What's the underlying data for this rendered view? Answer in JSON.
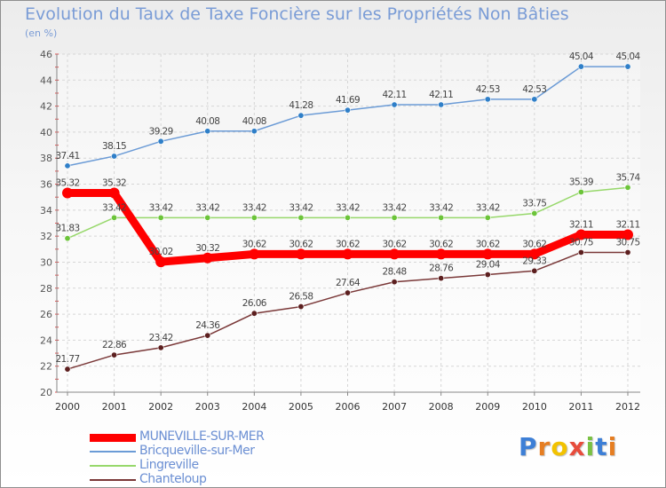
{
  "page": {
    "title": "Evolution du Taux de Taxe Foncière sur les Propriétés Non Bâties",
    "unit": "(en %)"
  },
  "logo": {
    "text": "Proxiti",
    "letters": [
      {
        "char": "P",
        "color": "#3d7fd6"
      },
      {
        "char": "r",
        "color": "#e67e22"
      },
      {
        "char": "o",
        "color": "#f2c200"
      },
      {
        "char": "x",
        "color": "#e74c3c"
      },
      {
        "char": "i",
        "color": "#7ac143"
      },
      {
        "char": "t",
        "color": "#3d7fd6"
      },
      {
        "char": "i",
        "color": "#e67e22"
      }
    ]
  },
  "chart_data": {
    "type": "line",
    "title": "Evolution du Taux de Taxe Foncière sur les Propriétés Non Bâties",
    "ylabel": "(en %)",
    "xlabel": "",
    "ylim": [
      20,
      46
    ],
    "yticks": [
      20,
      22,
      24,
      26,
      28,
      30,
      32,
      34,
      36,
      38,
      40,
      42,
      44,
      46
    ],
    "grid": true,
    "legend_position": "bottom-left",
    "x": [
      "2000",
      "2001",
      "2002",
      "2003",
      "2004",
      "2005",
      "2006",
      "2007",
      "2008",
      "2009",
      "2010",
      "2011",
      "2012"
    ],
    "series": [
      {
        "name": "MUNEVILLE-SUR-MER",
        "color": "#ff0000",
        "emphasis": true,
        "values": [
          35.32,
          35.32,
          30.02,
          30.32,
          30.62,
          30.62,
          30.62,
          30.62,
          30.62,
          30.62,
          30.62,
          32.11,
          32.11
        ],
        "labels": [
          "35.32",
          "35.32",
          "30.02",
          "30.32",
          "30.62",
          "30.62",
          "30.62",
          "30.62",
          "30.62",
          "30.62",
          "30.62",
          "32.11",
          "32.11"
        ]
      },
      {
        "name": "Bricqueville-sur-Mer",
        "color": "#6b9bd6",
        "marker": "#2f7fc8",
        "values": [
          37.41,
          38.15,
          39.29,
          40.08,
          40.08,
          41.28,
          41.69,
          42.11,
          42.11,
          42.53,
          42.53,
          45.04,
          45.04
        ],
        "labels": [
          "37.41",
          "38.15",
          "39.29",
          "40.08",
          "40.08",
          "41.28",
          "41.69",
          "42.11",
          "42.11",
          "42.53",
          "42.53",
          "45.04",
          "45.04"
        ]
      },
      {
        "name": "Lingreville",
        "color": "#97d86b",
        "marker": "#6cc43a",
        "values": [
          31.83,
          33.42,
          33.42,
          33.42,
          33.42,
          33.42,
          33.42,
          33.42,
          33.42,
          33.42,
          33.75,
          35.39,
          35.74
        ],
        "labels": [
          "31.83",
          "33.42",
          "33.42",
          "33.42",
          "33.42",
          "33.42",
          "33.42",
          "33.42",
          "33.42",
          "33.42",
          "33.75",
          "35.39",
          "35.74"
        ]
      },
      {
        "name": "Chanteloup",
        "color": "#7a3838",
        "marker": "#5c1f1f",
        "values": [
          21.77,
          22.86,
          23.42,
          24.36,
          26.06,
          26.58,
          27.64,
          28.48,
          28.76,
          29.04,
          29.33,
          30.75,
          30.75
        ],
        "labels": [
          "21.77",
          "22.86",
          "23.42",
          "24.36",
          "26.06",
          "26.58",
          "27.64",
          "28.48",
          "28.76",
          "29.04",
          "29.33",
          "30.75",
          "30.75"
        ]
      }
    ]
  }
}
